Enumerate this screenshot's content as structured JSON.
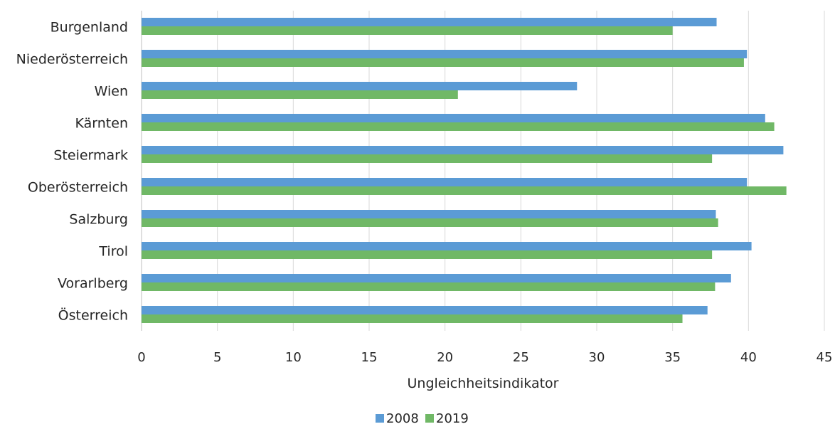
{
  "chart_data": {
    "type": "bar",
    "orientation": "horizontal",
    "title": "",
    "categories": [
      "Burgenland",
      "Niederösterreich",
      "Wien",
      "Kärnten",
      "Steiermark",
      "Oberösterreich",
      "Salzburg",
      "Tirol",
      "Vorarlberg",
      "Österreich"
    ],
    "series": [
      {
        "name": "2008",
        "color": "#5b9bd5",
        "values": [
          37.9,
          39.9,
          28.7,
          41.1,
          42.3,
          39.9,
          37.85,
          40.2,
          38.85,
          37.3
        ]
      },
      {
        "name": "2019",
        "color": "#70b866",
        "values": [
          35.0,
          39.7,
          20.85,
          41.7,
          37.6,
          42.5,
          38.0,
          37.6,
          37.8,
          35.65
        ]
      }
    ],
    "xlabel": "Ungleichheitsindikator",
    "ylabel": "",
    "xlim": [
      0,
      45
    ],
    "xticks": [
      0,
      5,
      10,
      15,
      20,
      25,
      30,
      35,
      40,
      45
    ],
    "grid": "vertical",
    "legend": "bottom-center"
  }
}
